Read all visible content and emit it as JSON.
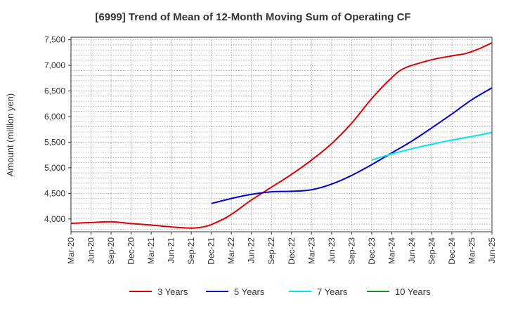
{
  "chart_data": {
    "type": "line",
    "title": "[6999]  Trend of Mean of 12-Month Moving Sum of Operating CF",
    "xlabel": "",
    "ylabel": "Amount (million yen)",
    "ylim": [
      3750,
      7550
    ],
    "yticks": [
      4000,
      4500,
      5000,
      5500,
      6000,
      6500,
      7000,
      7500
    ],
    "ytick_labels": [
      "4,000",
      "4,500",
      "5,000",
      "5,500",
      "6,000",
      "6,500",
      "7,000",
      "7,500"
    ],
    "x_start": "Mar-20",
    "x_months_total": 63,
    "xticks": [
      "Mar-20",
      "Jun-20",
      "Sep-20",
      "Dec-20",
      "Mar-21",
      "Jun-21",
      "Sep-21",
      "Dec-21",
      "Mar-22",
      "Jun-22",
      "Sep-22",
      "Dec-22",
      "Mar-23",
      "Jun-23",
      "Sep-23",
      "Dec-23",
      "Mar-24",
      "Jun-24",
      "Sep-24",
      "Dec-24",
      "Mar-25",
      "Jun-25"
    ],
    "grid": true,
    "legend_position": "bottom",
    "series": [
      {
        "name": "3 Years",
        "color": "#dd0000",
        "points": [
          [
            0,
            3915
          ],
          [
            3,
            3930
          ],
          [
            6,
            3945
          ],
          [
            9,
            3910
          ],
          [
            12,
            3880
          ],
          [
            15,
            3845
          ],
          [
            18,
            3820
          ],
          [
            20,
            3850
          ],
          [
            21,
            3890
          ],
          [
            23,
            4010
          ],
          [
            24,
            4090
          ],
          [
            25,
            4180
          ],
          [
            27,
            4370
          ],
          [
            30,
            4620
          ],
          [
            33,
            4870
          ],
          [
            36,
            5150
          ],
          [
            39,
            5470
          ],
          [
            42,
            5870
          ],
          [
            45,
            6350
          ],
          [
            48,
            6760
          ],
          [
            50,
            6950
          ],
          [
            54,
            7110
          ],
          [
            57,
            7185
          ],
          [
            59,
            7230
          ],
          [
            61,
            7320
          ],
          [
            63,
            7440
          ]
        ]
      },
      {
        "name": "5 Years",
        "color": "#0000cc",
        "points": [
          [
            21,
            4300
          ],
          [
            24,
            4400
          ],
          [
            27,
            4480
          ],
          [
            30,
            4530
          ],
          [
            33,
            4540
          ],
          [
            36,
            4570
          ],
          [
            39,
            4680
          ],
          [
            42,
            4850
          ],
          [
            45,
            5060
          ],
          [
            48,
            5290
          ],
          [
            51,
            5520
          ],
          [
            54,
            5780
          ],
          [
            57,
            6050
          ],
          [
            60,
            6330
          ],
          [
            63,
            6560
          ]
        ]
      },
      {
        "name": "7 Years",
        "color": "#00e5ee",
        "points": [
          [
            45,
            5150
          ],
          [
            48,
            5270
          ],
          [
            51,
            5370
          ],
          [
            54,
            5460
          ],
          [
            57,
            5540
          ],
          [
            60,
            5610
          ],
          [
            63,
            5690
          ]
        ]
      },
      {
        "name": "10 Years",
        "color": "#228b22",
        "points": []
      }
    ]
  }
}
